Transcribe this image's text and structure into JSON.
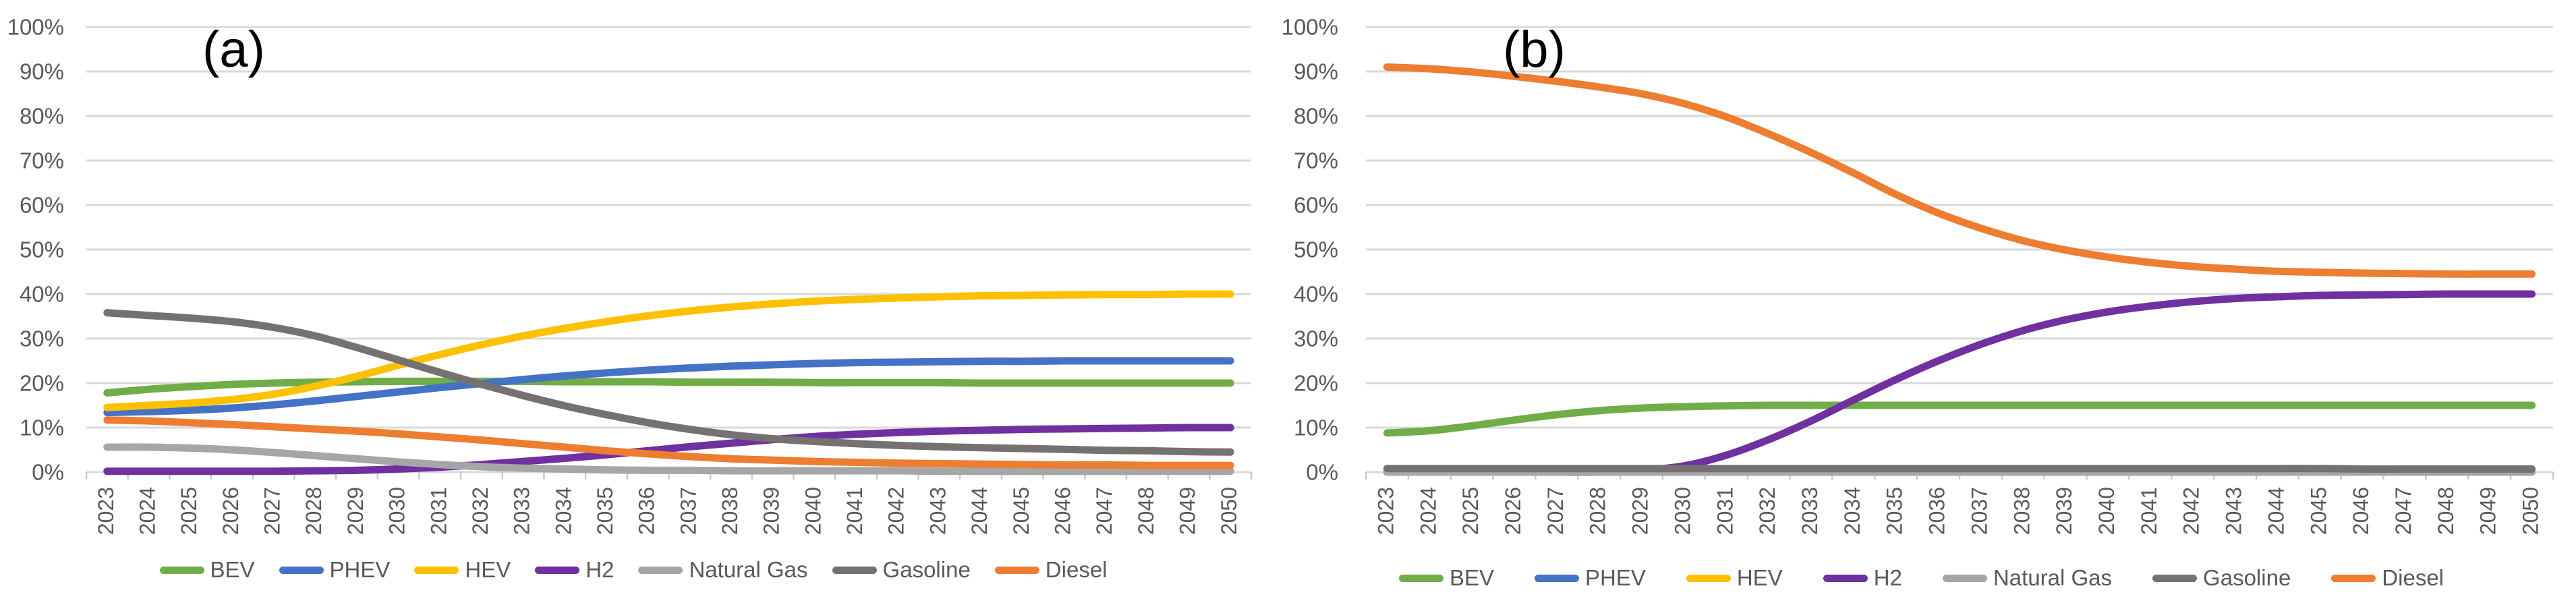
{
  "figure": {
    "background": "#FFFFFF"
  },
  "styles": {
    "grid_color": "#D9D9D9",
    "axis_color": "#C9C9C9",
    "tick_label_color": "#595959",
    "legend_label_color": "#595959",
    "title_color": "#000000"
  },
  "chart_data": [
    {
      "id": "a",
      "type": "line",
      "title": "(a)",
      "x": [
        2023,
        2024,
        2025,
        2026,
        2027,
        2028,
        2029,
        2030,
        2031,
        2032,
        2033,
        2034,
        2035,
        2036,
        2037,
        2038,
        2039,
        2040,
        2041,
        2042,
        2043,
        2044,
        2045,
        2046,
        2047,
        2048,
        2049,
        2050
      ],
      "ylim": [
        0,
        100
      ],
      "y_tick_step": 10,
      "y_tick_labels": [
        "0%",
        "10%",
        "20%",
        "30%",
        "40%",
        "50%",
        "60%",
        "70%",
        "80%",
        "90%",
        "100%"
      ],
      "grid": true,
      "legend_position": "bottom",
      "series": [
        {
          "name": "BEV",
          "color": "#70AD47",
          "values": [
            17.8,
            18.6,
            19.2,
            19.7,
            20.0,
            20.2,
            20.3,
            20.4,
            20.4,
            20.4,
            20.4,
            20.3,
            20.3,
            20.3,
            20.2,
            20.2,
            20.2,
            20.1,
            20.1,
            20.1,
            20.1,
            20.0,
            20.0,
            20.0,
            20.0,
            20.0,
            20.0,
            20.0
          ]
        },
        {
          "name": "PHEV",
          "color": "#4472C4",
          "values": [
            13.4,
            13.6,
            13.9,
            14.4,
            15.1,
            16.0,
            17.0,
            18.0,
            19.0,
            19.9,
            20.8,
            21.6,
            22.3,
            22.9,
            23.4,
            23.8,
            24.1,
            24.4,
            24.6,
            24.7,
            24.8,
            24.9,
            24.9,
            25.0,
            25.0,
            25.0,
            25.0,
            25.0
          ]
        },
        {
          "name": "HEV",
          "color": "#FFC000",
          "values": [
            14.5,
            15.0,
            15.5,
            16.3,
            17.5,
            19.3,
            21.5,
            24.0,
            26.4,
            28.6,
            30.6,
            32.3,
            33.8,
            35.1,
            36.2,
            37.1,
            37.8,
            38.4,
            38.8,
            39.1,
            39.4,
            39.6,
            39.7,
            39.8,
            39.9,
            39.9,
            40.0,
            40.0
          ]
        },
        {
          "name": "H2",
          "color": "#7030A0",
          "values": [
            0.2,
            0.2,
            0.2,
            0.2,
            0.2,
            0.3,
            0.4,
            0.7,
            1.1,
            1.7,
            2.4,
            3.1,
            3.9,
            4.8,
            5.7,
            6.5,
            7.3,
            8.0,
            8.5,
            8.9,
            9.2,
            9.4,
            9.6,
            9.7,
            9.8,
            9.9,
            10.0,
            10.0
          ]
        },
        {
          "name": "Natural Gas",
          "color": "#A6A6A6",
          "values": [
            5.6,
            5.6,
            5.4,
            5.0,
            4.4,
            3.7,
            3.0,
            2.3,
            1.7,
            1.2,
            0.9,
            0.7,
            0.5,
            0.4,
            0.4,
            0.3,
            0.3,
            0.3,
            0.3,
            0.3,
            0.2,
            0.2,
            0.2,
            0.2,
            0.2,
            0.2,
            0.2,
            0.2
          ]
        },
        {
          "name": "Gasoline",
          "color": "#757171",
          "values": [
            35.8,
            35.2,
            34.6,
            33.8,
            32.5,
            30.6,
            28.0,
            25.2,
            22.4,
            19.7,
            17.2,
            14.9,
            12.9,
            11.1,
            9.6,
            8.4,
            7.5,
            6.9,
            6.4,
            6.0,
            5.7,
            5.5,
            5.3,
            5.1,
            4.9,
            4.8,
            4.6,
            4.5
          ]
        },
        {
          "name": "Diesel",
          "color": "#ED7D31",
          "values": [
            11.7,
            11.5,
            11.1,
            10.7,
            10.2,
            9.7,
            9.2,
            8.6,
            7.9,
            7.2,
            6.4,
            5.6,
            4.8,
            4.1,
            3.5,
            3.0,
            2.7,
            2.4,
            2.2,
            2.0,
            1.9,
            1.8,
            1.7,
            1.6,
            1.6,
            1.5,
            1.5,
            1.5
          ]
        }
      ]
    },
    {
      "id": "b",
      "type": "line",
      "title": "(b)",
      "x": [
        2023,
        2024,
        2025,
        2026,
        2027,
        2028,
        2029,
        2030,
        2031,
        2032,
        2033,
        2034,
        2035,
        2036,
        2037,
        2038,
        2039,
        2040,
        2041,
        2042,
        2043,
        2044,
        2045,
        2046,
        2047,
        2048,
        2049,
        2050
      ],
      "ylim": [
        0,
        100
      ],
      "y_tick_step": 10,
      "y_tick_labels": [
        "0%",
        "10%",
        "20%",
        "30%",
        "40%",
        "50%",
        "60%",
        "70%",
        "80%",
        "90%",
        "100%"
      ],
      "grid": true,
      "legend_position": "bottom",
      "series": [
        {
          "name": "BEV",
          "color": "#70AD47",
          "values": [
            8.8,
            9.3,
            10.4,
            11.7,
            12.9,
            13.8,
            14.4,
            14.7,
            14.9,
            15.0,
            15.0,
            15.0,
            15.0,
            15.0,
            15.0,
            15.0,
            15.0,
            15.0,
            15.0,
            15.0,
            15.0,
            15.0,
            15.0,
            15.0,
            15.0,
            15.0,
            15.0,
            15.0
          ]
        },
        {
          "name": "PHEV",
          "color": "#4472C4",
          "values": [
            0.0,
            0.0,
            0.0,
            0.0,
            0.0,
            0.0,
            0.0,
            0.0,
            0.0,
            0.0,
            0.0,
            0.0,
            0.0,
            0.0,
            0.0,
            0.0,
            0.0,
            0.0,
            0.0,
            0.0,
            0.0,
            0.0,
            0.0,
            0.0,
            0.0,
            0.0,
            0.0,
            0.0
          ]
        },
        {
          "name": "HEV",
          "color": "#FFC000",
          "values": [
            0.0,
            0.0,
            0.0,
            0.0,
            0.0,
            0.0,
            0.0,
            0.0,
            0.0,
            0.0,
            0.0,
            0.0,
            0.0,
            0.0,
            0.0,
            0.0,
            0.0,
            0.0,
            0.0,
            0.0,
            0.0,
            0.0,
            0.0,
            0.0,
            0.0,
            0.0,
            0.0,
            0.0
          ]
        },
        {
          "name": "H2",
          "color": "#7030A0",
          "values": [
            0.0,
            0.0,
            0.0,
            0.0,
            0.0,
            0.0,
            0.4,
            1.4,
            3.8,
            7.3,
            11.5,
            16.2,
            20.8,
            25.0,
            28.7,
            31.8,
            34.2,
            36.0,
            37.3,
            38.3,
            39.0,
            39.4,
            39.7,
            39.8,
            39.9,
            40.0,
            40.0,
            40.0
          ]
        },
        {
          "name": "Natural Gas",
          "color": "#A6A6A6",
          "values": [
            0.0,
            0.0,
            0.0,
            0.0,
            0.0,
            0.0,
            0.0,
            0.0,
            0.0,
            0.0,
            0.0,
            0.0,
            0.0,
            0.0,
            0.0,
            0.0,
            0.0,
            0.0,
            0.0,
            0.0,
            0.0,
            0.0,
            0.0,
            0.0,
            0.0,
            0.0,
            0.0,
            0.0
          ]
        },
        {
          "name": "Gasoline",
          "color": "#757171",
          "values": [
            0.8,
            0.8,
            0.8,
            0.8,
            0.8,
            0.8,
            0.8,
            0.8,
            0.8,
            0.8,
            0.8,
            0.8,
            0.8,
            0.8,
            0.8,
            0.8,
            0.8,
            0.8,
            0.8,
            0.8,
            0.8,
            0.8,
            0.8,
            0.7,
            0.7,
            0.7,
            0.7,
            0.7
          ]
        },
        {
          "name": "Diesel",
          "color": "#ED7D31",
          "values": [
            91.0,
            90.6,
            89.9,
            88.9,
            87.8,
            86.5,
            85.0,
            82.8,
            79.8,
            76.0,
            71.8,
            67.2,
            62.4,
            58.2,
            54.8,
            52.0,
            49.9,
            48.3,
            47.1,
            46.2,
            45.6,
            45.1,
            44.9,
            44.7,
            44.6,
            44.5,
            44.5,
            44.5
          ]
        }
      ]
    }
  ]
}
